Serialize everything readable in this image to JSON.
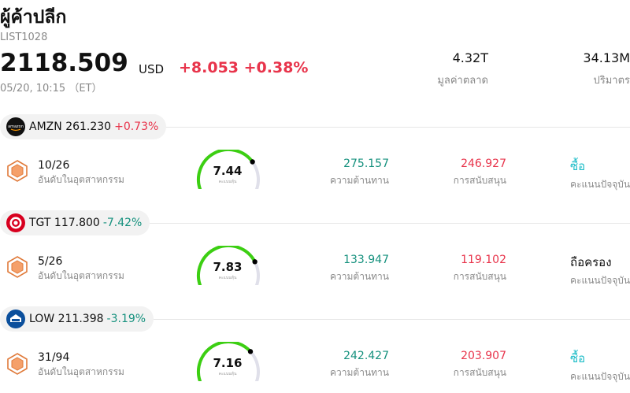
{
  "header": {
    "title": "ผู้ค้าปลีก",
    "code": "LIST1028",
    "price": "2118.509",
    "currency": "USD",
    "change": "+8.053 +0.38%",
    "time": "05/20, 10:15 （ET）"
  },
  "stats": {
    "market_cap": {
      "value": "4.32T",
      "label": "มูลค่าตลาด"
    },
    "volume": {
      "value": "34.13M",
      "label": "ปริมาตร"
    }
  },
  "labels": {
    "rank": "อันดับในอุตสาหกรรม",
    "resistance": "ความต้านทาน",
    "support": "การสนับสนุน",
    "rating": "คะแนนปัจจุบัน",
    "gauge_caption": "คะแนนหุ้น"
  },
  "colors": {
    "up": "#e8344b",
    "down": "#16917e",
    "gauge_active": "#3ccf12",
    "gauge_track": "#e0e0ea",
    "rating_buy": "#1bbcc7",
    "badge": "#e07a3a"
  },
  "stocks": [
    {
      "logo_icon": "amazon-logo-icon",
      "symbol": "AMZN",
      "price": "261.230",
      "change_pct": "+0.73%",
      "direction": "up",
      "rank": "10/26",
      "score": "7.44",
      "score_value": 7.44,
      "resistance": "275.157",
      "support": "246.927",
      "rating": "ซื้อ",
      "rating_type": "buy"
    },
    {
      "logo_icon": "target-logo-icon",
      "symbol": "TGT",
      "price": "117.800",
      "change_pct": "-7.42%",
      "direction": "down",
      "rank": "5/26",
      "score": "7.83",
      "score_value": 7.83,
      "resistance": "133.947",
      "support": "119.102",
      "rating": "ถือครอง",
      "rating_type": "hold"
    },
    {
      "logo_icon": "lowes-logo-icon",
      "symbol": "LOW",
      "price": "211.398",
      "change_pct": "-3.19%",
      "direction": "down",
      "rank": "31/94",
      "score": "7.16",
      "score_value": 7.16,
      "resistance": "242.427",
      "support": "203.907",
      "rating": "ซื้อ",
      "rating_type": "buy"
    }
  ]
}
